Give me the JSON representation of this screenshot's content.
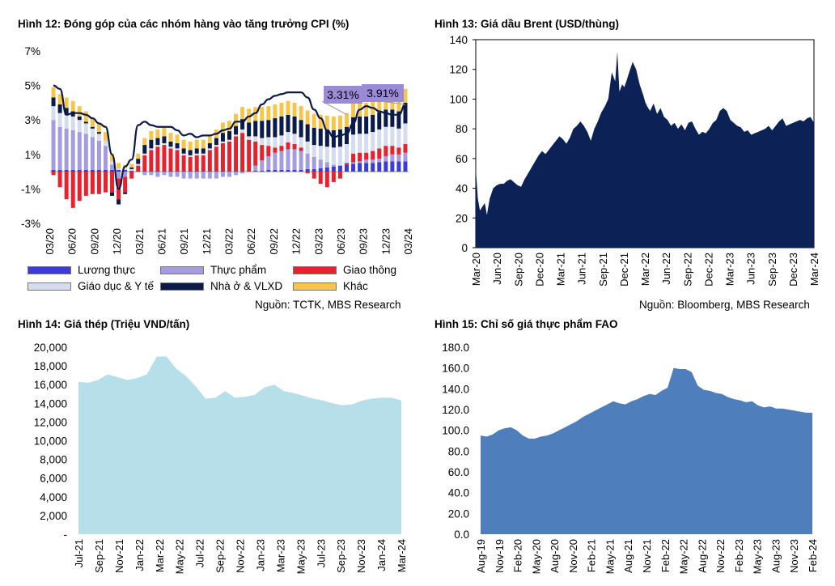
{
  "chart_data": [
    {
      "type": "bar",
      "title": "Hình 12: Đóng góp của các nhóm hàng vào tăng trưởng CPI (%)",
      "source": "Nguồn: TCTK, MBS Research",
      "ylim": [
        -3,
        7
      ],
      "ytick_labels": [
        "-3%",
        "-1%",
        "1%",
        "3%",
        "5%",
        "7%"
      ],
      "ytick_values": [
        -3,
        -1,
        1,
        3,
        5,
        7
      ],
      "xtick_labels": [
        "03/20",
        "06/20",
        "09/20",
        "12/20",
        "03/21",
        "06/21",
        "09/21",
        "12/21",
        "03/22",
        "06/22",
        "09/22",
        "12/22",
        "03/23",
        "06/23",
        "09/23",
        "12/23",
        "03/24"
      ],
      "callouts": [
        "3.31%",
        "3.91%"
      ],
      "stacked": true,
      "series": [
        {
          "name": "Lương thực",
          "color": "#3b3bd6",
          "values": [
            0.1,
            0.1,
            0.1,
            0.1,
            0.1,
            0.1,
            0.1,
            0.1,
            0.1,
            0.1,
            0.1,
            0.1,
            0.05,
            0.05,
            0.05,
            0.05,
            0.05,
            0.05,
            0.05,
            0.05,
            0.05,
            0.05,
            0.05,
            0.05,
            0.05,
            0.05,
            0.05,
            0.05,
            0.05,
            0.05,
            0.05,
            0.05,
            0.05,
            0.1,
            0.1,
            0.1,
            0.1,
            0.1,
            0.1,
            0.15,
            0.15,
            0.2,
            0.25,
            0.3,
            0.35,
            0.4,
            0.45,
            0.5,
            0.5,
            0.5,
            0.55,
            0.6,
            0.6,
            0.6,
            0.6
          ]
        },
        {
          "name": "Thực phẩm",
          "color": "#a59be0",
          "values": [
            2.9,
            2.5,
            2.4,
            2.3,
            2.2,
            2.1,
            1.9,
            1.7,
            1.4,
            0.3,
            -0.4,
            -0.3,
            0,
            0,
            -0.2,
            -0.2,
            -0.3,
            -0.2,
            -0.3,
            -0.3,
            -0.4,
            -0.4,
            -0.4,
            -0.4,
            -0.4,
            -0.4,
            -0.3,
            -0.3,
            -0.2,
            -0.1,
            0,
            0.3,
            0.6,
            0.8,
            1,
            1.1,
            1.2,
            1.2,
            1.1,
            0.9,
            0.7,
            0.5,
            0.3,
            0.1,
            0,
            0,
            0.1,
            0.1,
            0.2,
            0.2,
            0.2,
            0.3,
            0.4,
            0.4,
            0.5
          ]
        },
        {
          "name": "Giao thông",
          "color": "#e8212e",
          "values": [
            -0.2,
            -0.9,
            -1.6,
            -2.1,
            -1.7,
            -1.4,
            -1.3,
            -1.3,
            -1.2,
            -1.2,
            -1.2,
            -0.9,
            -0.4,
            0.3,
            0.9,
            1.2,
            1.4,
            1.5,
            1.3,
            1.2,
            0.9,
            0.8,
            0.9,
            0.9,
            1.2,
            1.4,
            1.6,
            1.7,
            2,
            2.2,
            1.8,
            1.4,
            0.9,
            0.6,
            0.3,
            0.3,
            0.4,
            0.3,
            0.2,
            -0.1,
            -0.4,
            -0.7,
            -0.9,
            -0.6,
            -0.4,
            0.1,
            0.5,
            0.5,
            0.4,
            0.5,
            0.6,
            0.6,
            0.5,
            0.4,
            0.5
          ]
        },
        {
          "name": "Giáo dục & Y tế",
          "color": "#d5dcee",
          "values": [
            0.8,
            0.8,
            0.8,
            0.8,
            0.7,
            0.6,
            0.5,
            0.4,
            0.3,
            0.2,
            0.1,
            0.1,
            0.1,
            0.1,
            0.1,
            0.1,
            0.1,
            0.1,
            0.1,
            0.1,
            0.1,
            0.1,
            0.1,
            0.1,
            0.1,
            0.1,
            0.1,
            0.1,
            0.1,
            0.2,
            0.2,
            0.3,
            0.4,
            0.5,
            0.6,
            0.6,
            0.6,
            0.6,
            0.6,
            0.7,
            0.7,
            0.8,
            0.9,
            1,
            1.1,
            1.1,
            1.1,
            1.1,
            1.1,
            1.1,
            1.1,
            1.1,
            1.1,
            1.1,
            1.2
          ]
        },
        {
          "name": "Nhà ở & VLXD",
          "color": "#0a1a4a",
          "values": [
            0.5,
            0.5,
            0.4,
            0.3,
            0.2,
            0.1,
            0.1,
            0.1,
            0,
            -0.2,
            -0.3,
            -0.1,
            0.1,
            0.3,
            0.5,
            0.5,
            0.4,
            0.4,
            0.3,
            0.3,
            0.3,
            0.3,
            0.3,
            0.3,
            0.3,
            0.4,
            0.5,
            0.5,
            0.5,
            0.6,
            0.8,
            0.9,
            1,
            1,
            1.1,
            1.1,
            1,
            1,
            1,
            1,
            1,
            1,
            1,
            1,
            1,
            1,
            1,
            1,
            1,
            1,
            1,
            1,
            1,
            1,
            1.2
          ]
        },
        {
          "name": "Khác",
          "color": "#f7c549",
          "values": [
            0.6,
            0.6,
            0.6,
            0.6,
            0.6,
            0.6,
            0.5,
            0.5,
            0.5,
            0.4,
            0.3,
            0.2,
            0.2,
            0.3,
            0.4,
            0.5,
            0.5,
            0.5,
            0.5,
            0.5,
            0.5,
            0.5,
            0.5,
            0.5,
            0.5,
            0.5,
            0.6,
            0.6,
            0.7,
            0.7,
            0.8,
            0.8,
            0.8,
            0.8,
            0.8,
            0.8,
            0.8,
            0.8,
            0.8,
            0.8,
            0.8,
            0.8,
            0.8,
            0.8,
            0.8,
            0.8,
            0.8,
            0.8,
            0.8,
            0.8,
            0.8,
            0.8,
            0.8,
            0.8,
            0.8
          ]
        }
      ],
      "line": {
        "name": "CPI",
        "color": "#0a1a4a",
        "values": [
          5,
          4.8,
          3.3,
          3.4,
          3.4,
          3.3,
          3.1,
          2.8,
          2.6,
          1,
          -1,
          0.3,
          0.7,
          2.7,
          2.9,
          2.7,
          2.6,
          2.6,
          2.6,
          2.4,
          2.1,
          2.2,
          2,
          2.1,
          2.1,
          2.2,
          2.4,
          2.5,
          2.9,
          2.9,
          3.2,
          3.4,
          3.9,
          4.2,
          4.4,
          4.5,
          4.6,
          4.6,
          4.6,
          4.3,
          3.6,
          3.1,
          2.4,
          2,
          2.1,
          2.2,
          2.8,
          3.6,
          3.8,
          3.7,
          3.5,
          3.4,
          3.3,
          3.3,
          3.9
        ]
      }
    },
    {
      "type": "area",
      "title": "Hình 13: Giá dầu Brent (USD/thùng)",
      "source": "Nguồn: Bloomberg, MBS Research",
      "ylim": [
        0,
        140
      ],
      "ytick_labels": [
        "0",
        "20",
        "40",
        "60",
        "80",
        "100",
        "120",
        "140"
      ],
      "xtick_labels": [
        "Mar-20",
        "Jun-20",
        "Sep-20",
        "Dec-20",
        "Mar-21",
        "Jun-21",
        "Sep-21",
        "Dec-21",
        "Mar-22",
        "Jun-22",
        "Sep-22",
        "Dec-22",
        "Mar-23",
        "Jun-23",
        "Sep-23",
        "Dec-23",
        "Mar-24"
      ],
      "color": "#0c2257",
      "x_months": [
        0,
        0.3,
        0.6,
        1,
        1.3,
        1.6,
        2,
        2.5,
        3,
        3.5,
        4,
        4.5,
        5,
        5.5,
        6,
        6.5,
        7,
        7.5,
        8,
        8.5,
        9,
        9.5,
        10,
        10.5,
        11,
        11.5,
        12,
        12.5,
        13,
        13.5,
        14,
        14.5,
        15,
        15.5,
        16,
        16.5,
        17,
        17.5,
        18,
        18.5,
        19,
        19.5,
        20,
        20.3,
        20.6,
        21,
        21.3,
        21.6,
        22,
        22.5,
        23,
        23.5,
        24,
        24.3,
        24.6,
        25,
        25.5,
        26,
        26.5,
        27,
        27.5,
        28,
        28.5,
        29,
        29.5,
        30,
        30.5,
        31,
        31.5,
        32,
        32.5,
        33,
        33.5,
        34,
        34.5,
        35,
        35.5,
        36,
        36.5,
        37,
        37.5,
        38,
        38.5,
        39,
        39.5,
        40,
        40.5,
        41,
        41.5,
        42,
        42.5,
        43,
        43.5,
        44,
        44.5,
        45,
        45.5,
        46,
        46.5,
        47,
        47.5,
        48,
        48.5
      ],
      "values": [
        54,
        33,
        25,
        28,
        30,
        22,
        33,
        40,
        42,
        43,
        43,
        45,
        46,
        44,
        42,
        41,
        46,
        50,
        54,
        58,
        62,
        65,
        63,
        66,
        69,
        72,
        75,
        73,
        70,
        74,
        80,
        82,
        85,
        82,
        78,
        72,
        80,
        85,
        91,
        95,
        100,
        118,
        112,
        132,
        105,
        110,
        108,
        112,
        118,
        125,
        120,
        110,
        103,
        98,
        95,
        92,
        97,
        90,
        94,
        88,
        86,
        82,
        84,
        80,
        83,
        79,
        84,
        85,
        80,
        76,
        78,
        77,
        80,
        84,
        86,
        92,
        94,
        92,
        86,
        84,
        82,
        81,
        78,
        79,
        76,
        77,
        78,
        79,
        80,
        82,
        79,
        82,
        85,
        87,
        82,
        83,
        84,
        85,
        86,
        85,
        87,
        88,
        84
      ]
    },
    {
      "type": "area",
      "title": "Hình 14: Giá thép (Triệu VND/tấn)",
      "ylim": [
        0,
        20000
      ],
      "ytick_labels": [
        "-",
        "2,000",
        "4,000",
        "6,000",
        "8,000",
        "10,000",
        "12,000",
        "14,000",
        "16,000",
        "18,000",
        "20,000"
      ],
      "xtick_labels": [
        "Jul-21",
        "Sep-21",
        "Nov-21",
        "Jan-22",
        "Mar-22",
        "May-22",
        "Jul-22",
        "Sep-22",
        "Nov-22",
        "Jan-23",
        "Mar-23",
        "May-23",
        "Jul-23",
        "Sep-23",
        "Nov-23",
        "Jan-24",
        "Mar-24"
      ],
      "color": "#b7dfe9",
      "values": [
        16300,
        16200,
        16500,
        17100,
        16800,
        16500,
        16700,
        17100,
        19000,
        19000,
        17700,
        16900,
        15800,
        14500,
        14600,
        15300,
        14600,
        14700,
        14900,
        15700,
        16000,
        15300,
        15100,
        14800,
        14500,
        14300,
        14000,
        13800,
        13900,
        14300,
        14500,
        14600,
        14600,
        14300
      ]
    },
    {
      "type": "area",
      "title": "Hình 15: Chỉ số giá thực phẩm FAO",
      "ylim": [
        0,
        180
      ],
      "ytick_labels": [
        "0.0",
        "20.0",
        "40.0",
        "60.0",
        "80.0",
        "100.0",
        "120.0",
        "140.0",
        "160.0",
        "180.0"
      ],
      "xtick_labels": [
        "Aug-19",
        "Nov-19",
        "Feb-20",
        "May-20",
        "Aug-20",
        "Nov-20",
        "Feb-21",
        "May-21",
        "Aug-21",
        "Nov-21",
        "Feb-22",
        "May-22",
        "Aug-22",
        "Nov-22",
        "Feb-23",
        "May-23",
        "Aug-23",
        "Nov-23",
        "Feb-24"
      ],
      "color": "#4e7fbc",
      "values": [
        95,
        94,
        96,
        100,
        102,
        103,
        100,
        95,
        92,
        92,
        94,
        95,
        97,
        100,
        103,
        106,
        109,
        113,
        116,
        119,
        122,
        125,
        128,
        126,
        125,
        128,
        130,
        133,
        135,
        134,
        138,
        141,
        160,
        159,
        159,
        156,
        143,
        139,
        138,
        136,
        135,
        132,
        130,
        129,
        127,
        128,
        124,
        122,
        123,
        121,
        121,
        120,
        119,
        118,
        117,
        117
      ]
    }
  ],
  "legend12": [
    {
      "label": "Lương thực",
      "color": "#3b3bd6"
    },
    {
      "label": "Thực phẩm",
      "color": "#a59be0"
    },
    {
      "label": "Giao thông",
      "color": "#e8212e"
    },
    {
      "label": "Giáo dục & Y tế",
      "color": "#d5dcee"
    },
    {
      "label": "Nhà ở & VLXD",
      "color": "#0a1a4a"
    },
    {
      "label": "Khác",
      "color": "#f7c549"
    }
  ]
}
